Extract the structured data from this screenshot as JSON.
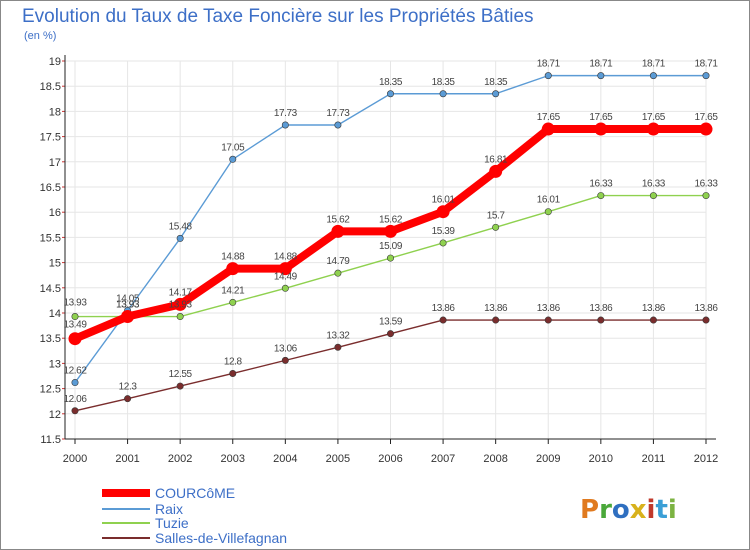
{
  "header": {
    "title": "Evolution du Taux de Taxe Foncière sur les Propriétés Bâties",
    "unit": "(en %)"
  },
  "brand": {
    "text": "Proxiti",
    "colors": [
      "#e07a1f",
      "#4aa83a",
      "#2f6fc0",
      "#d8b21c",
      "#c0392b",
      "#3b9fd6",
      "#7cb342"
    ]
  },
  "colors": {
    "background": "#ffffff",
    "border": "#888888",
    "grid": "#e6e6e6",
    "axis": "#222222"
  },
  "chart_data": {
    "type": "line",
    "title": "Evolution du Taux de Taxe Foncière sur les Propriétés Bâties",
    "ylabel": "(en %)",
    "x": [
      "2000",
      "2001",
      "2002",
      "2003",
      "2004",
      "2005",
      "2006",
      "2007",
      "2008",
      "2009",
      "2010",
      "2011",
      "2012"
    ],
    "ylim": [
      11.5,
      19
    ],
    "yticks": [
      "11.5",
      "12",
      "12.5",
      "13",
      "13.5",
      "14",
      "14.5",
      "15",
      "15.5",
      "16",
      "16.5",
      "17",
      "17.5",
      "18",
      "18.5",
      "19"
    ],
    "grid": true,
    "legend_position": "bottom-left",
    "series": [
      {
        "name": "COURCôME",
        "color": "#ff0000",
        "values": [
          13.49,
          13.93,
          14.17,
          14.88,
          14.88,
          15.62,
          15.62,
          16.01,
          16.81,
          17.65,
          17.65,
          17.65,
          17.65
        ],
        "labels": [
          "13.49",
          "13.93",
          "14.17",
          "14.88",
          "14.88",
          "15.62",
          "15.62",
          "16.01",
          "16.81",
          "17.65",
          "17.65",
          "17.65",
          "17.65"
        ]
      },
      {
        "name": "Raix",
        "color": "#5b9bd5",
        "values": [
          12.62,
          14.05,
          15.48,
          17.05,
          17.73,
          17.73,
          18.35,
          18.35,
          18.35,
          18.71,
          18.71,
          18.71,
          18.71
        ],
        "labels": [
          "12.62",
          "14.05",
          "15.48",
          "17.05",
          "17.73",
          "17.73",
          "18.35",
          "18.35",
          "18.35",
          "18.71",
          "18.71",
          "18.71",
          "18.71"
        ]
      },
      {
        "name": "Tuzie",
        "color": "#8fd14f",
        "values": [
          13.93,
          13.93,
          13.93,
          14.21,
          14.49,
          14.79,
          15.09,
          15.39,
          15.7,
          16.01,
          16.33,
          16.33,
          16.33
        ],
        "labels": [
          "13.93",
          "13.93",
          "13.93",
          "14.21",
          "14.49",
          "14.79",
          "15.09",
          "15.39",
          "15.7",
          "16.01",
          "16.33",
          "16.33",
          "16.33"
        ]
      },
      {
        "name": "Salles-de-Villefagnan",
        "color": "#7a2d2d",
        "values": [
          12.06,
          12.3,
          12.55,
          12.8,
          13.06,
          13.32,
          13.59,
          13.86,
          13.86,
          13.86,
          13.86,
          13.86,
          13.86
        ],
        "labels": [
          "12.06",
          "12.3",
          "12.55",
          "12.8",
          "13.06",
          "13.32",
          "13.59",
          "13.86",
          "13.86",
          "13.86",
          "13.86",
          "13.86",
          "13.86"
        ]
      }
    ]
  }
}
